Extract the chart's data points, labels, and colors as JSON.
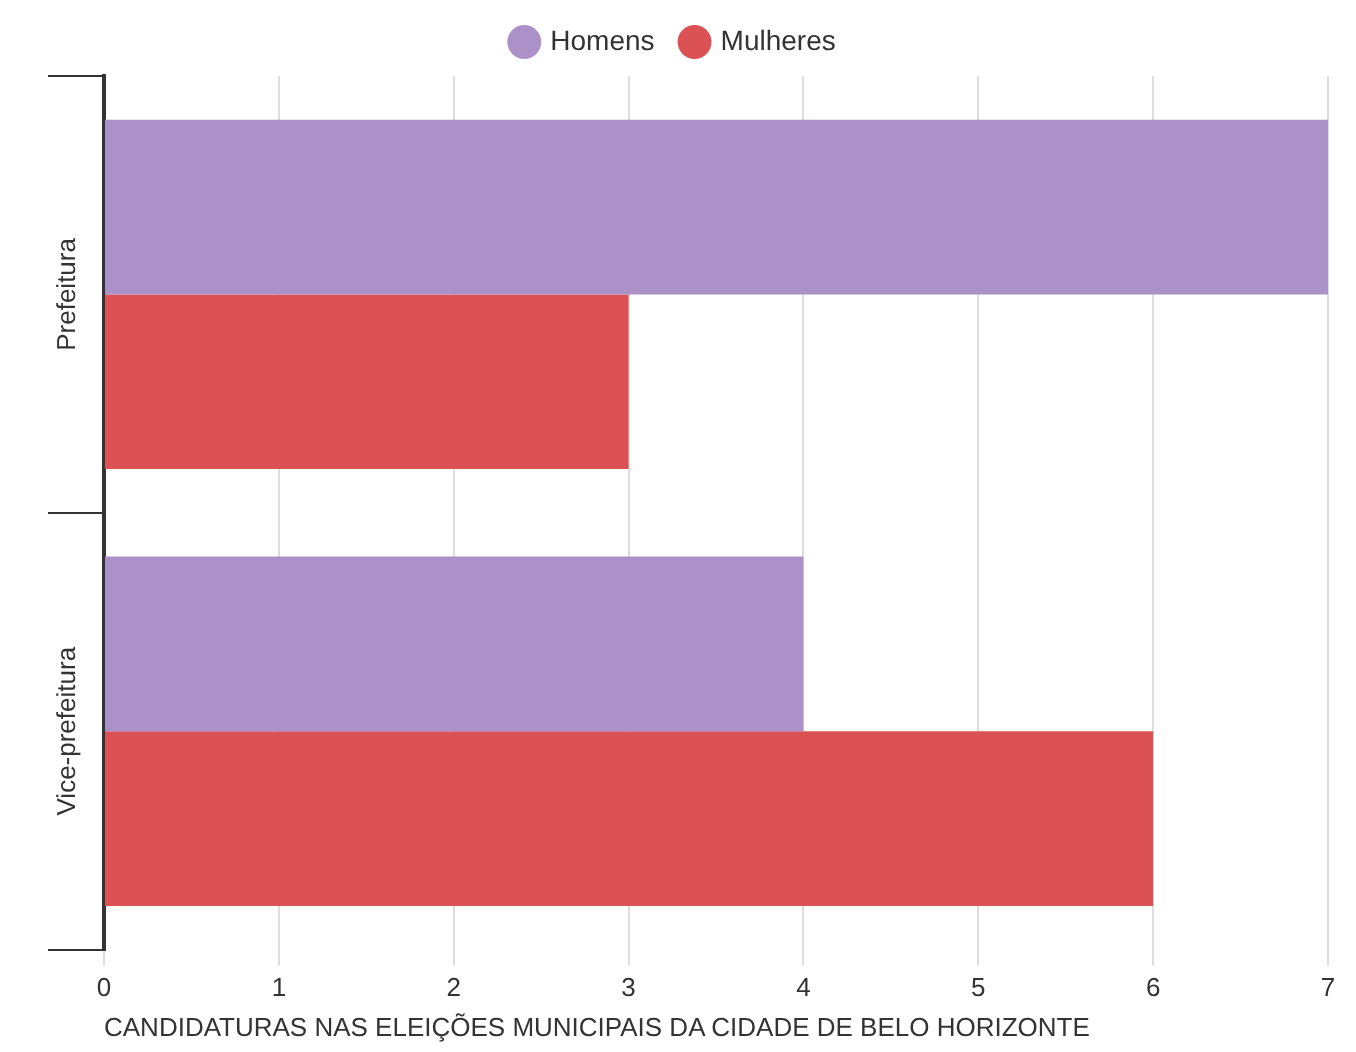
{
  "chart_data": {
    "type": "bar",
    "orientation": "horizontal",
    "xlabel": "CANDIDATURAS NAS ELEIÇÕES MUNICIPAIS DA CIDADE DE BELO HORIZONTE",
    "categories": [
      "Prefeitura",
      "Vice-prefeitura"
    ],
    "series": [
      {
        "name": "Homens",
        "color": "#ab91c8",
        "values": [
          7,
          4
        ]
      },
      {
        "name": "Mulheres",
        "color": "#dc5254",
        "values": [
          3,
          6
        ]
      }
    ],
    "xlim": [
      0,
      7
    ],
    "xticks": [
      0,
      1,
      2,
      3,
      4,
      5,
      6,
      7
    ],
    "grid": "x",
    "legend": "top"
  }
}
